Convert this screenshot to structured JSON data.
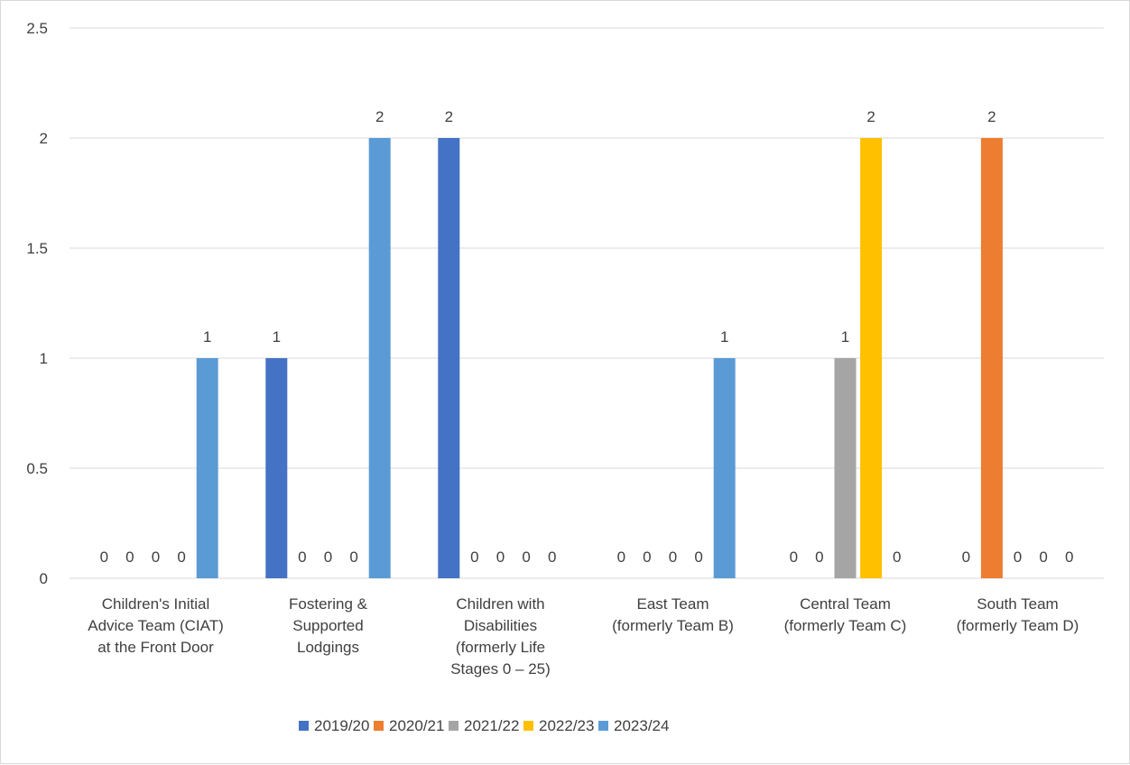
{
  "chart_data": {
    "type": "bar",
    "title": "",
    "xlabel": "",
    "ylabel": "",
    "ylim": [
      0,
      2.5
    ],
    "yticks": [
      "0",
      "0.5",
      "1",
      "1.5",
      "2",
      "2.5"
    ],
    "grid": true,
    "legend_position": "bottom",
    "categories": [
      [
        "Children's Initial",
        "Advice Team (CIAT)",
        "at the Front Door"
      ],
      [
        "Fostering &",
        "Supported",
        "Lodgings"
      ],
      [
        "Children with",
        "Disabilities",
        "(formerly Life",
        "Stages 0 – 25)"
      ],
      [
        "East Team",
        "(formerly Team B)"
      ],
      [
        "Central Team",
        "(formerly Team C)"
      ],
      [
        "South Team",
        "(formerly Team D)"
      ]
    ],
    "series": [
      {
        "name": "2019/20",
        "color": "#4472C4",
        "values": [
          0,
          1,
          2,
          0,
          0,
          0
        ]
      },
      {
        "name": "2020/21",
        "color": "#ED7D31",
        "values": [
          0,
          0,
          0,
          0,
          0,
          2
        ]
      },
      {
        "name": "2021/22",
        "color": "#A5A5A5",
        "values": [
          0,
          0,
          0,
          0,
          1,
          0
        ]
      },
      {
        "name": "2022/23",
        "color": "#FFC000",
        "values": [
          0,
          0,
          0,
          0,
          2,
          0
        ]
      },
      {
        "name": "2023/24",
        "color": "#5B9BD5",
        "values": [
          1,
          2,
          0,
          1,
          0,
          0
        ]
      }
    ]
  }
}
